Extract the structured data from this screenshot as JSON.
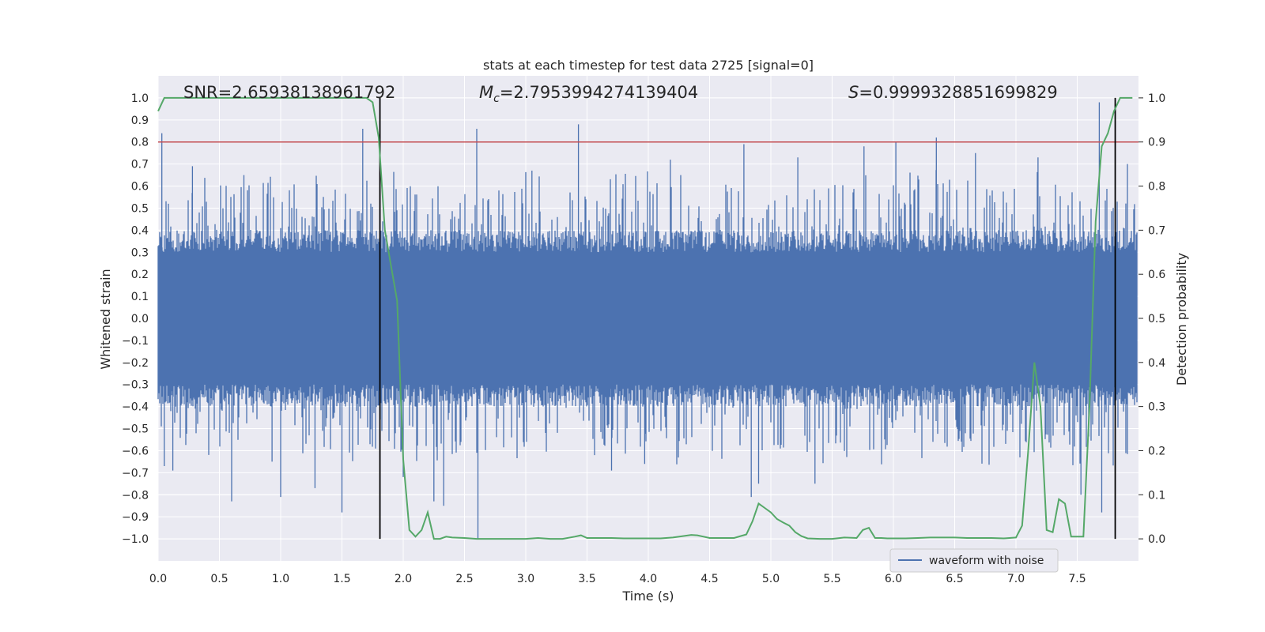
{
  "chart_data": {
    "type": "line",
    "title": "stats at each timestep for test data 2725 [signal=0]",
    "xlabel": "Time (s)",
    "ylabel": "Whitened strain",
    "y2label": "Detection probability",
    "xlim": [
      0.0,
      8.0
    ],
    "ylim": [
      -1.1,
      1.1
    ],
    "y2lim": [
      -0.05,
      1.05
    ],
    "xticks": [
      0.0,
      0.5,
      1.0,
      1.5,
      2.0,
      2.5,
      3.0,
      3.5,
      4.0,
      4.5,
      5.0,
      5.5,
      6.0,
      6.5,
      7.0,
      7.5
    ],
    "yticks": [
      -1.0,
      -0.9,
      -0.8,
      -0.7,
      -0.6,
      -0.5,
      -0.4,
      -0.3,
      -0.2,
      -0.1,
      0.0,
      0.1,
      0.2,
      0.3,
      0.4,
      0.5,
      0.6,
      0.7,
      0.8,
      0.9,
      1.0
    ],
    "y2ticks": [
      0.0,
      0.1,
      0.2,
      0.3,
      0.4,
      0.5,
      0.6,
      0.7,
      0.8,
      0.9,
      1.0
    ],
    "grid": true,
    "legend_position": "bottom-right",
    "annotations": {
      "snr": "SNR=2.65938138961792",
      "mc_symbol": "M",
      "mc_sub": "c",
      "mc_value": "=2.7953994274139404",
      "s_symbol": "S",
      "s_value": "=0.9999328851699829"
    },
    "threshold": {
      "axis": "y2",
      "value": 0.9,
      "color": "#c44e52"
    },
    "vlines": [
      1.81,
      7.81
    ],
    "series": [
      {
        "name": "waveform with noise",
        "axis": "y",
        "color": "#4c72b0",
        "kind": "noise",
        "t_start": 0.0,
        "t_end": 7.99,
        "envelope": 0.4,
        "peaks": [
          {
            "x": 0.03,
            "y": 0.84
          },
          {
            "x": 0.05,
            "y": -0.67
          },
          {
            "x": 0.12,
            "y": -0.69
          },
          {
            "x": 0.28,
            "y": 0.69
          },
          {
            "x": 0.6,
            "y": -0.83
          },
          {
            "x": 0.7,
            "y": 0.65
          },
          {
            "x": 0.93,
            "y": -0.65
          },
          {
            "x": 1.0,
            "y": -0.81
          },
          {
            "x": 1.28,
            "y": -0.77
          },
          {
            "x": 1.5,
            "y": -0.88
          },
          {
            "x": 1.67,
            "y": 0.86
          },
          {
            "x": 2.0,
            "y": -0.72
          },
          {
            "x": 2.25,
            "y": -0.83
          },
          {
            "x": 2.33,
            "y": -0.85
          },
          {
            "x": 2.6,
            "y": 0.86
          },
          {
            "x": 2.61,
            "y": -1.0
          },
          {
            "x": 3.05,
            "y": 0.67
          },
          {
            "x": 3.43,
            "y": 0.88
          },
          {
            "x": 3.7,
            "y": -0.69
          },
          {
            "x": 3.97,
            "y": -0.66
          },
          {
            "x": 4.18,
            "y": 0.72
          },
          {
            "x": 4.78,
            "y": 0.79
          },
          {
            "x": 4.84,
            "y": -0.81
          },
          {
            "x": 4.9,
            "y": -0.75
          },
          {
            "x": 5.22,
            "y": 0.73
          },
          {
            "x": 5.36,
            "y": -0.75
          },
          {
            "x": 5.76,
            "y": 0.78
          },
          {
            "x": 6.02,
            "y": 0.8
          },
          {
            "x": 6.35,
            "y": 0.82
          },
          {
            "x": 6.67,
            "y": 0.75
          },
          {
            "x": 7.18,
            "y": 0.73
          },
          {
            "x": 7.53,
            "y": -0.8
          },
          {
            "x": 7.68,
            "y": 0.98
          },
          {
            "x": 7.7,
            "y": -0.88
          },
          {
            "x": 7.91,
            "y": 0.7
          }
        ]
      },
      {
        "name": "",
        "axis": "y2",
        "color": "#55a868",
        "kind": "line",
        "x": [
          0.0,
          0.05,
          0.1,
          0.2,
          0.3,
          0.4,
          0.5,
          0.6,
          0.7,
          0.8,
          0.9,
          1.0,
          1.1,
          1.2,
          1.3,
          1.4,
          1.5,
          1.6,
          1.7,
          1.75,
          1.8,
          1.85,
          1.9,
          1.95,
          2.0,
          2.05,
          2.1,
          2.15,
          2.2,
          2.25,
          2.3,
          2.35,
          2.4,
          2.5,
          2.6,
          2.7,
          2.8,
          2.9,
          3.0,
          3.1,
          3.2,
          3.3,
          3.4,
          3.45,
          3.5,
          3.6,
          3.7,
          3.8,
          3.9,
          4.0,
          4.1,
          4.2,
          4.3,
          4.35,
          4.4,
          4.5,
          4.6,
          4.7,
          4.8,
          4.85,
          4.9,
          4.95,
          5.0,
          5.05,
          5.1,
          5.15,
          5.2,
          5.25,
          5.3,
          5.4,
          5.5,
          5.6,
          5.7,
          5.75,
          5.8,
          5.85,
          5.9,
          5.95,
          6.0,
          6.1,
          6.2,
          6.3,
          6.4,
          6.5,
          6.6,
          6.7,
          6.8,
          6.9,
          7.0,
          7.05,
          7.1,
          7.15,
          7.2,
          7.25,
          7.3,
          7.35,
          7.4,
          7.45,
          7.5,
          7.55,
          7.6,
          7.65,
          7.7,
          7.75,
          7.8,
          7.85,
          7.9,
          7.95
        ],
        "y": [
          0.97,
          1.0,
          1.0,
          1.0,
          1.0,
          1.0,
          1.0,
          1.0,
          1.0,
          1.0,
          1.0,
          1.0,
          1.0,
          1.0,
          1.0,
          1.0,
          1.0,
          1.0,
          1.0,
          0.99,
          0.91,
          0.7,
          0.62,
          0.54,
          0.18,
          0.02,
          0.005,
          0.02,
          0.06,
          0.0,
          0.0,
          0.005,
          0.003,
          0.002,
          0.0,
          0.0,
          0.0,
          0.0,
          0.0,
          0.002,
          0.0,
          0.0,
          0.005,
          0.008,
          0.002,
          0.002,
          0.002,
          0.001,
          0.001,
          0.001,
          0.001,
          0.003,
          0.007,
          0.009,
          0.008,
          0.002,
          0.002,
          0.002,
          0.01,
          0.04,
          0.08,
          0.07,
          0.06,
          0.045,
          0.037,
          0.03,
          0.015,
          0.006,
          0.001,
          0.0,
          0.0,
          0.003,
          0.002,
          0.02,
          0.025,
          0.002,
          0.002,
          0.001,
          0.001,
          0.001,
          0.002,
          0.003,
          0.003,
          0.003,
          0.002,
          0.002,
          0.002,
          0.001,
          0.003,
          0.03,
          0.2,
          0.4,
          0.3,
          0.02,
          0.015,
          0.09,
          0.08,
          0.005,
          0.005,
          0.005,
          0.3,
          0.72,
          0.89,
          0.92,
          0.97,
          1.0,
          1.0,
          1.0
        ]
      }
    ]
  }
}
